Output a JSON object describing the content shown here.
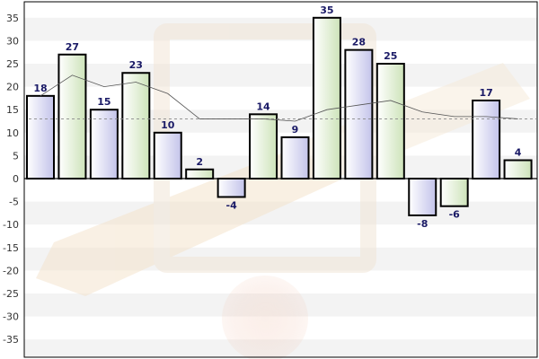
{
  "chart_data": {
    "type": "bar",
    "title": "",
    "xlabel": "",
    "ylabel": "",
    "ylim": [
      -40,
      40
    ],
    "y_ticks": [
      35,
      30,
      25,
      20,
      15,
      10,
      5,
      0,
      -5,
      -10,
      -15,
      -20,
      -25,
      -30,
      -35
    ],
    "grid": true,
    "values": [
      18,
      27,
      15,
      23,
      10,
      2,
      -4,
      14,
      9,
      35,
      28,
      25,
      -8,
      -6,
      17,
      4
    ],
    "bar_fill_pattern": [
      "lavender",
      "green"
    ],
    "trend_line": [
      18,
      22.5,
      20,
      21,
      18.5,
      13,
      13,
      13,
      12.5,
      15,
      16,
      17,
      14.5,
      13.5,
      13.5,
      13
    ],
    "average_line": 13,
    "colors": {
      "lavender_light": "#ffffff",
      "lavender_dark": "#c7c7ea",
      "green_light": "#ffffff",
      "green_dark": "#cfe3bd",
      "bar_stroke": "#000000",
      "grid_band": "#f2f2f2",
      "label_color": "#1a1a66"
    }
  }
}
